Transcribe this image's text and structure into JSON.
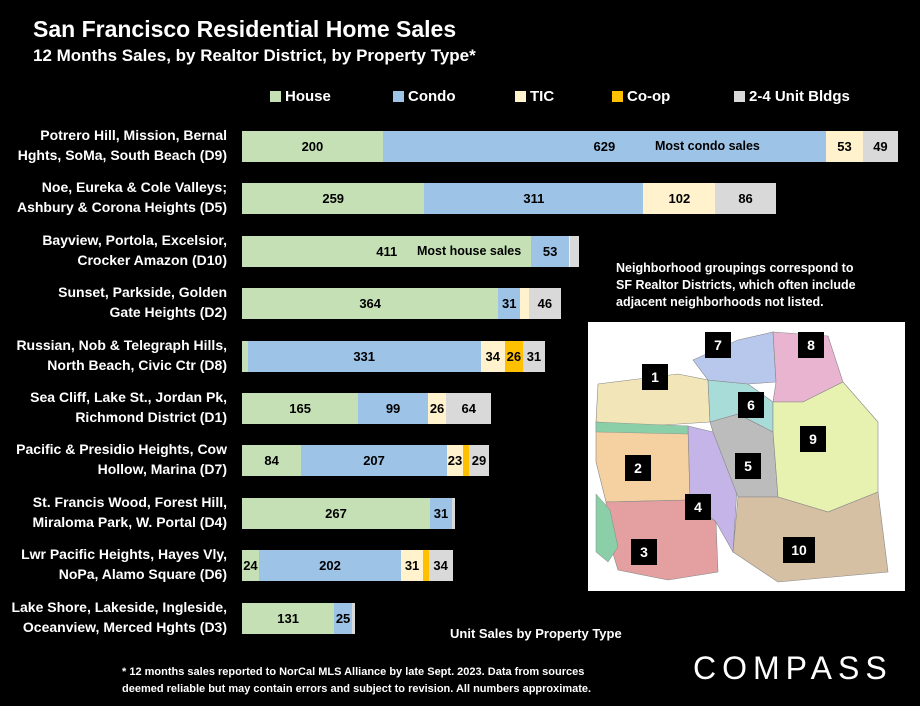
{
  "title": "San Francisco Residential Home Sales",
  "subtitle": "12 Months Sales, by Realtor District, by Property Type*",
  "chart_data": {
    "type": "bar",
    "orientation": "horizontal",
    "stacked": true,
    "categories": [
      [
        "Potrero Hill, Mission, Bernal",
        "Hghts, SoMa, South Beach (D9)"
      ],
      [
        "Noe, Eureka & Cole Valleys;",
        "Ashbury & Corona Heights (D5)"
      ],
      [
        "Bayview, Portola, Excelsior,",
        "Crocker Amazon (D10)"
      ],
      [
        "Sunset, Parkside, Golden",
        "Gate Heights (D2)"
      ],
      [
        "Russian, Nob & Telegraph Hills,",
        "North Beach, Civic Ctr (D8)"
      ],
      [
        "Sea Cliff, Lake St., Jordan Pk,",
        "Richmond District (D1)"
      ],
      [
        "Pacific & Presidio Heights, Cow",
        "Hollow, Marina (D7)"
      ],
      [
        "St. Francis Wood, Forest Hill,",
        "Miraloma Park, W. Portal (D4)"
      ],
      [
        "Lwr Pacific Heights, Hayes Vly,",
        "NoPa, Alamo Square (D6)"
      ],
      [
        "Lake Shore, Lakeside, Ingleside,",
        "Oceanview, Merced Hghts (D3)"
      ]
    ],
    "series": [
      {
        "name": "House",
        "color": "#c5e0b4",
        "values": [
          200,
          259,
          411,
          364,
          8,
          165,
          84,
          267,
          24,
          131
        ],
        "labels": [
          "200",
          "259",
          "411",
          "364",
          "",
          "165",
          "84",
          "267",
          "24",
          "131"
        ]
      },
      {
        "name": "Condo",
        "color": "#9dc3e6",
        "values": [
          629,
          311,
          53,
          31,
          331,
          99,
          207,
          31,
          202,
          25
        ],
        "labels": [
          "629",
          "311",
          "53",
          "31",
          "331",
          "99",
          "207",
          "31",
          "202",
          "25"
        ]
      },
      {
        "name": "TIC",
        "color": "#fff2cc",
        "values": [
          53,
          102,
          2,
          12,
          34,
          26,
          23,
          0,
          31,
          0
        ],
        "labels": [
          "53",
          "102",
          "",
          "",
          "34",
          "26",
          "23",
          "",
          "31",
          ""
        ]
      },
      {
        "name": "Co-op",
        "color": "#ffc000",
        "values": [
          0,
          0,
          0,
          0,
          26,
          0,
          8,
          0,
          8,
          0
        ],
        "labels": [
          "",
          "",
          "",
          "",
          "26",
          "",
          "",
          "",
          "",
          ""
        ]
      },
      {
        "name": "2-4 Unit Bldgs",
        "color": "#d9d9d9",
        "values": [
          49,
          86,
          12,
          46,
          31,
          64,
          29,
          4,
          34,
          4
        ],
        "labels": [
          "49",
          "86",
          "",
          "46",
          "31",
          "64",
          "29",
          "",
          "34",
          ""
        ]
      }
    ],
    "annotations": [
      {
        "category_index": 0,
        "text": "Most condo sales"
      },
      {
        "category_index": 2,
        "text": "Most house sales"
      }
    ],
    "xlabel": "Unit Sales by Property Type",
    "xlim": [
      0,
      940
    ],
    "grid": false,
    "legend": "top"
  },
  "note": [
    "Neighborhood groupings correspond to",
    "SF Realtor Districts, which often include",
    "adjacent neighborhoods not listed."
  ],
  "map": {
    "districts": [
      "1",
      "2",
      "3",
      "4",
      "5",
      "6",
      "7",
      "8",
      "9",
      "10"
    ],
    "colors": {
      "d1": "#f2e6b8",
      "d2": "#f5d0a0",
      "d3": "#e4a0a0",
      "d4": "#c4b4e8",
      "d5": "#bcbcbc",
      "d6": "#a8dcd8",
      "d7": "#b8c8ec",
      "d8": "#e8b4d0",
      "d9": "#e8f2b0",
      "d10": "#d6c0a4",
      "park": "#8acfa8"
    }
  },
  "footnote": [
    "* 12 months sales reported to NorCal MLS Alliance by late Sept. 2023. Data from sources",
    "deemed reliable but may contain errors and subject to revision. All numbers approximate."
  ],
  "logo": "COMPASS"
}
